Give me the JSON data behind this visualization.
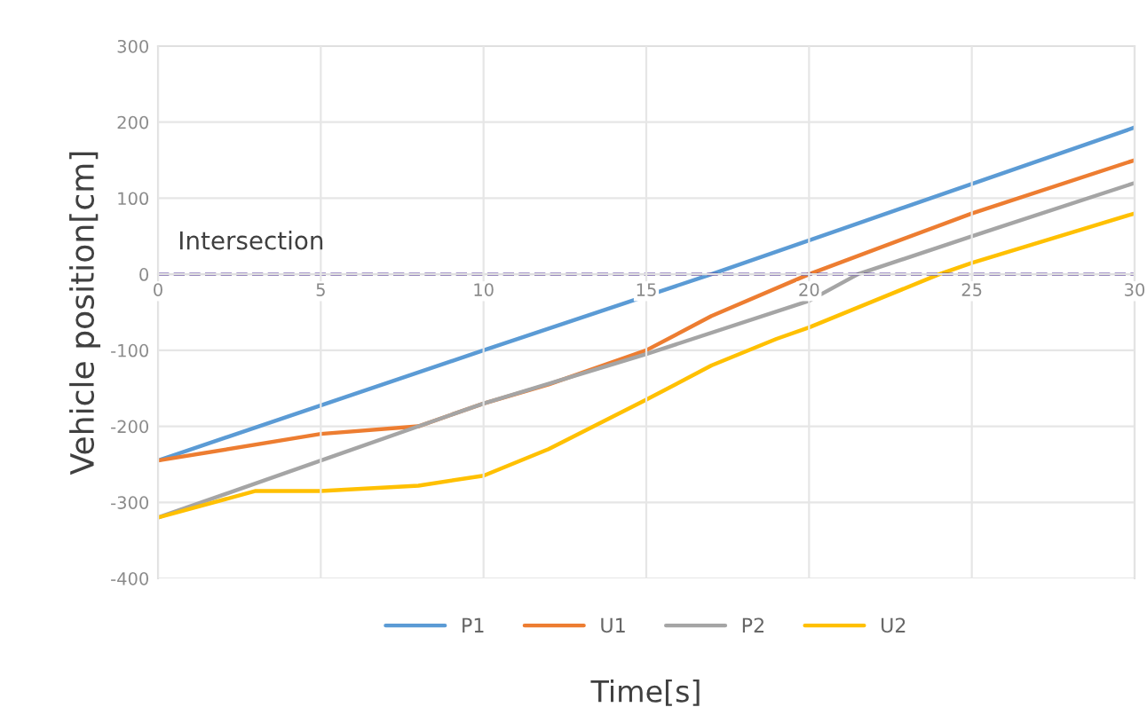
{
  "chart_data": {
    "type": "line",
    "xlabel": "Time[s]",
    "ylabel": "Vehicle position[cm]",
    "xlim": [
      0,
      30
    ],
    "xticks": [
      0,
      5,
      10,
      15,
      20,
      25,
      30
    ],
    "ylim": [
      -400,
      300
    ],
    "yticks": [
      -400,
      -300,
      -200,
      -100,
      0,
      100,
      200,
      300
    ],
    "grid": true,
    "legend": "bottom",
    "marker": "none",
    "line_style": "solid",
    "ref_lines": [
      {
        "axis": "y",
        "value": 0,
        "label": "Intersection",
        "color": "#5b3f9b",
        "line_style": "dashed"
      }
    ],
    "series": [
      {
        "name": "P1",
        "color": "#5b9bd5",
        "x": [
          0,
          10,
          17,
          30
        ],
        "values": [
          -245,
          -100,
          0,
          193
        ]
      },
      {
        "name": "U1",
        "color": "#ed7d31",
        "x": [
          0,
          5,
          8,
          10,
          12,
          15,
          17,
          20,
          25,
          30
        ],
        "values": [
          -245,
          -210,
          -200,
          -170,
          -145,
          -100,
          -55,
          0,
          80,
          150
        ]
      },
      {
        "name": "P2",
        "color": "#a5a5a5",
        "x": [
          0,
          10,
          15,
          20,
          21.5,
          25,
          30
        ],
        "values": [
          -320,
          -170,
          -105,
          -35,
          0,
          50,
          120
        ]
      },
      {
        "name": "U2",
        "color": "#ffc000",
        "x": [
          0,
          3,
          5,
          8,
          10,
          12,
          15,
          17,
          19,
          20,
          22,
          24,
          25,
          30
        ],
        "values": [
          -320,
          -285,
          -285,
          -278,
          -265,
          -230,
          -165,
          -120,
          -85,
          -70,
          -35,
          0,
          15,
          80
        ]
      }
    ]
  }
}
